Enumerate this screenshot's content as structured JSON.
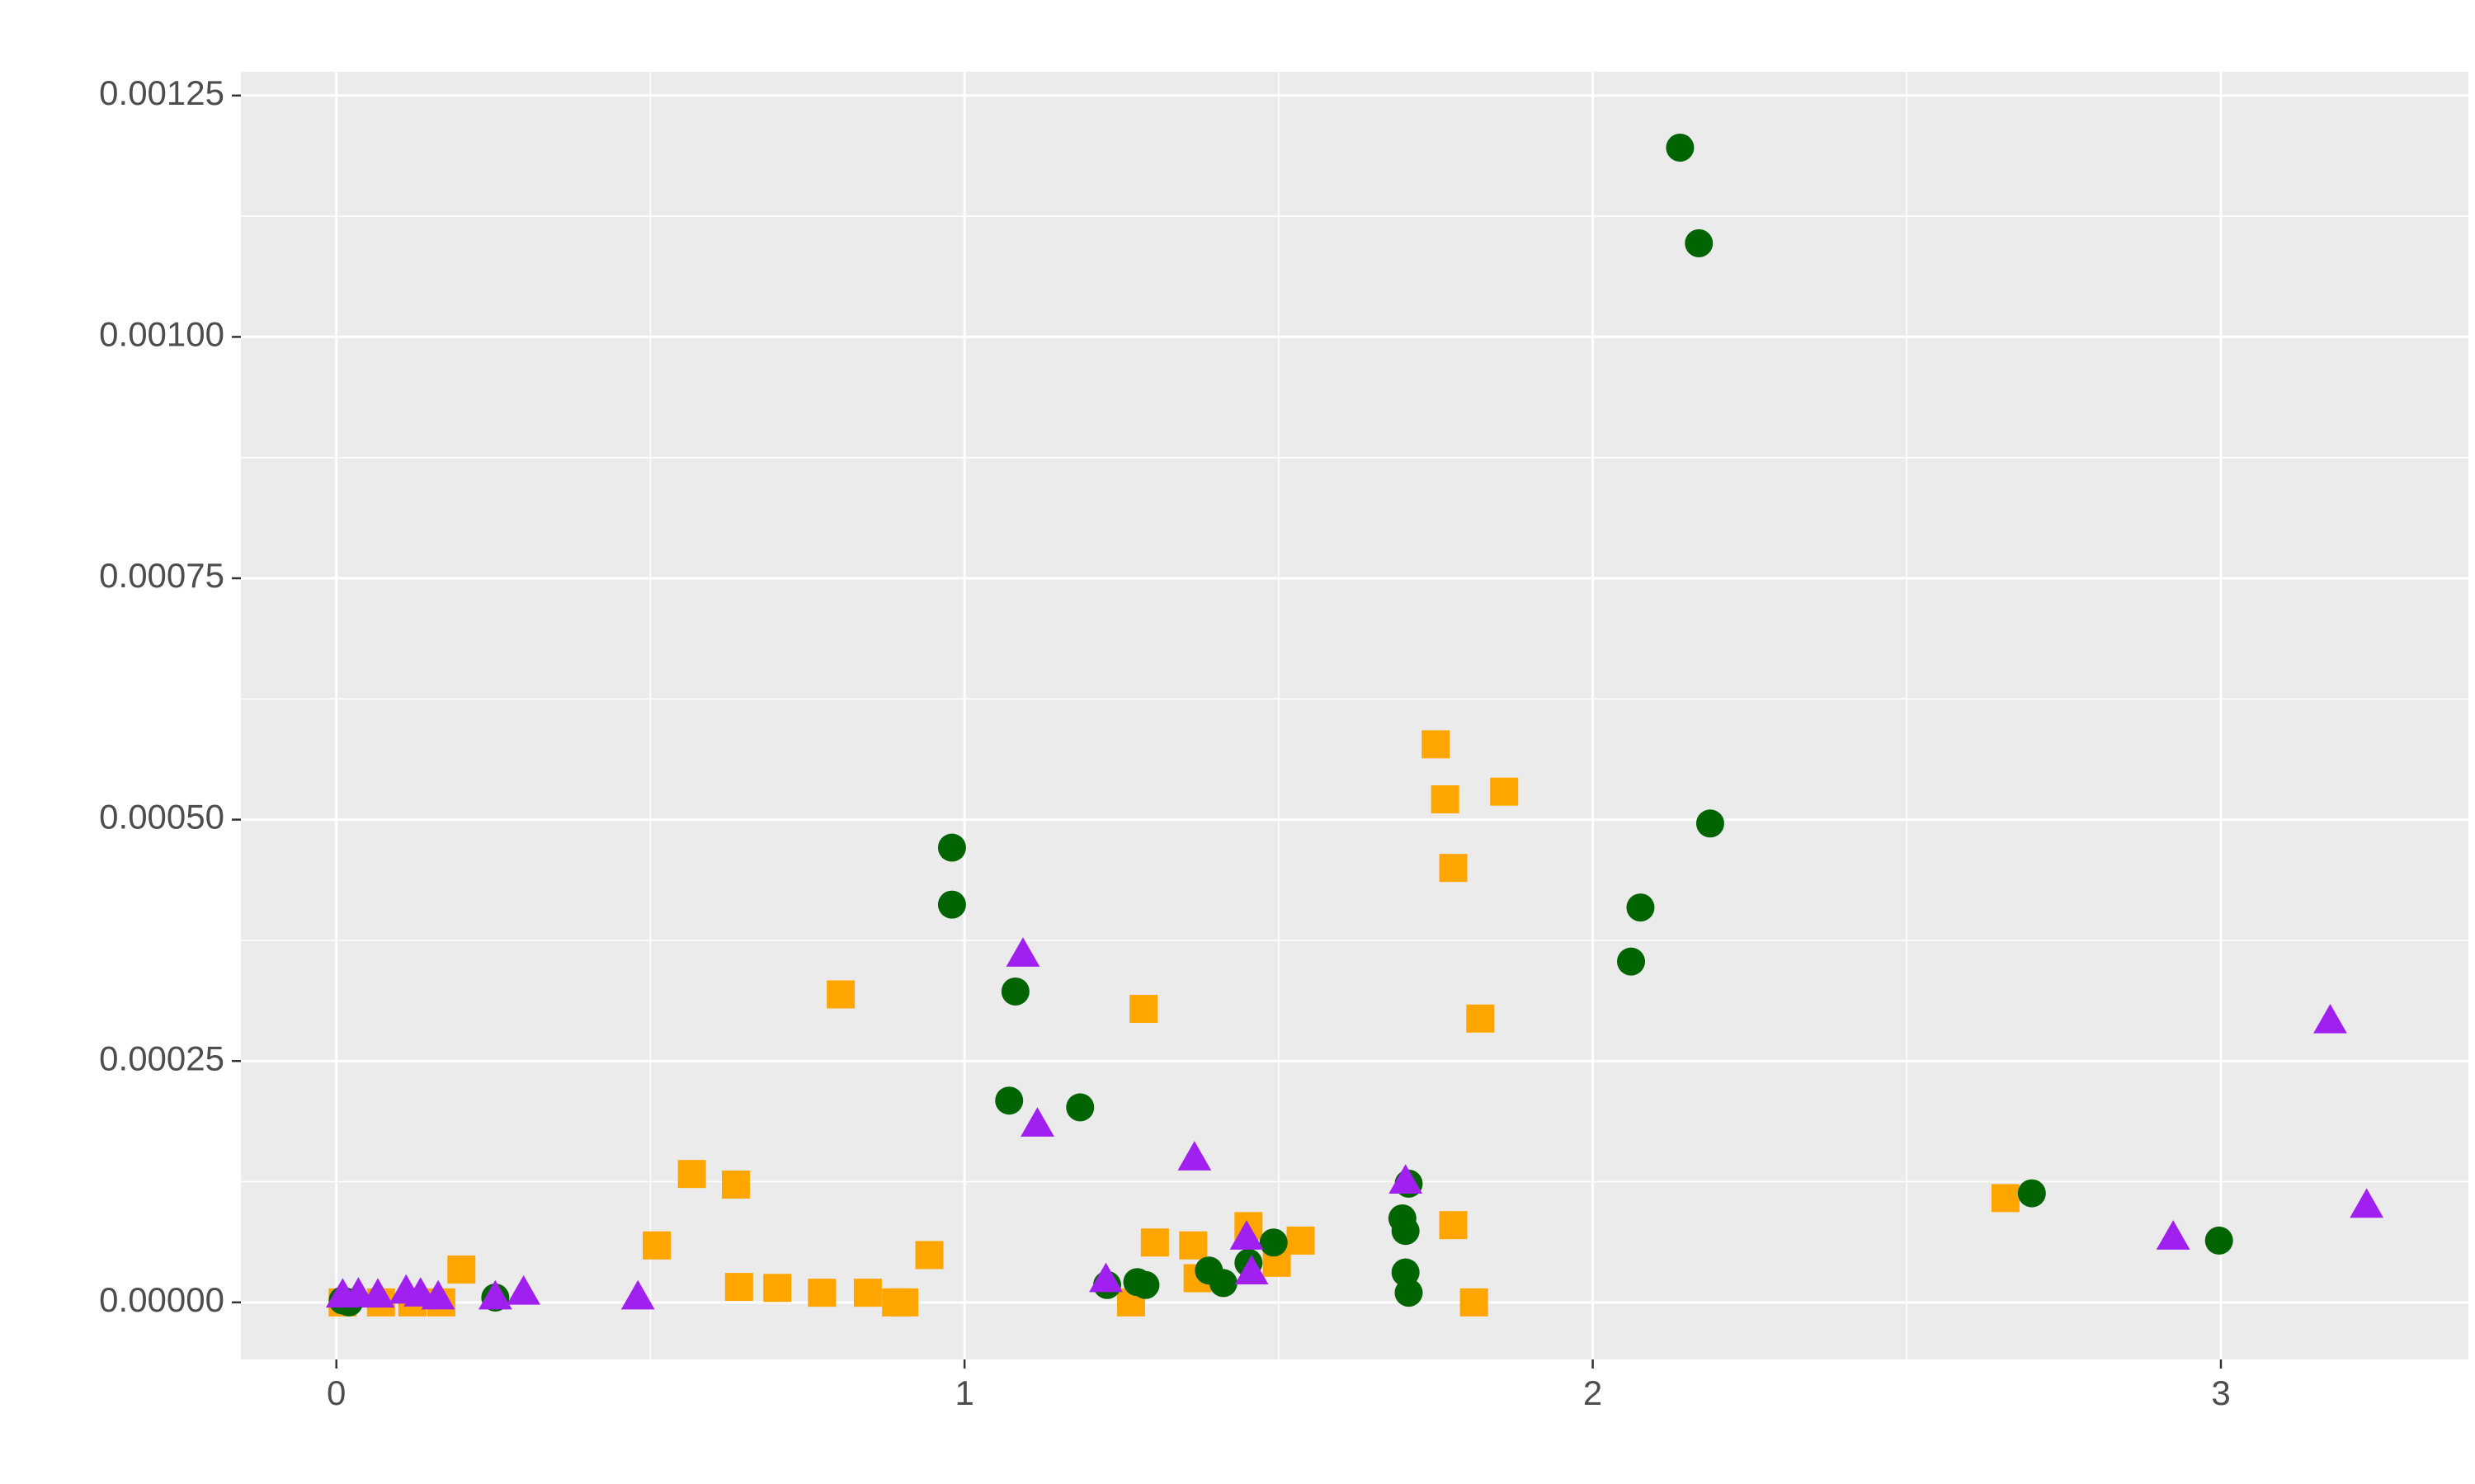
{
  "chart_data": {
    "type": "scatter",
    "xlim": [
      -0.152,
      3.394
    ],
    "xticks": [
      0,
      1,
      2,
      3
    ],
    "x_minor_ticks": [
      0.5,
      1.5,
      2.5
    ],
    "ylim": [
      -5.91e-05,
      0.0012746
    ],
    "yticks": [
      {
        "value": 0,
        "label": "0.00000"
      },
      {
        "value": 0.00025,
        "label": "0.00025"
      },
      {
        "value": 0.0005,
        "label": "0.00050"
      },
      {
        "value": 0.00075,
        "label": "0.00075"
      },
      {
        "value": 0.001,
        "label": "0.00100"
      },
      {
        "value": 0.00125,
        "label": "0.00125"
      }
    ],
    "y_minor_ticks": [
      0.000125,
      0.000375,
      0.000625,
      0.000875,
      0.001125
    ],
    "grid": true,
    "series": [
      {
        "color": "#ffa500",
        "shape": "square",
        "x": [
          1.75,
          1.765,
          1.859,
          1.778,
          1.821,
          0.803,
          1.285,
          0.566,
          0.636,
          0.51,
          0.944,
          0.641,
          0.702,
          0.773,
          0.846,
          0.891,
          0.904,
          0.199,
          2.657,
          1.778,
          1.811,
          1.452,
          1.535,
          1.497,
          1.303,
          1.364,
          1.371,
          1.265,
          0.01,
          0.071,
          0.121,
          0.167
        ],
        "values": [
          0.000578,
          0.000521,
          0.000529,
          0.00045,
          0.000294,
          0.000319,
          0.000304,
          0.000133,
          0.000122,
          5.9e-05,
          4.9e-05,
          1.6e-05,
          1.5e-05,
          1e-05,
          1e-05,
          0.0,
          0.0,
          3.4e-05,
          0.000108,
          8e-05,
          0.0,
          7.9e-05,
          6.4e-05,
          4.1e-05,
          6.2e-05,
          5.9e-05,
          2.5e-05,
          0.0,
          0.0,
          0.0,
          0.0,
          0.0
        ]
      },
      {
        "color": "#006400",
        "shape": "circle",
        "x": [
          2.139,
          2.169,
          2.187,
          2.076,
          2.061,
          0.98,
          0.98,
          1.081,
          1.071,
          1.184,
          2.699,
          2.997,
          1.707,
          1.697,
          1.702,
          1.702,
          1.707,
          1.492,
          1.389,
          1.412,
          1.452,
          1.275,
          1.288,
          1.227,
          0.253,
          0.02,
          0.01
        ],
        "values": [
          0.001196,
          0.001097,
          0.000496,
          0.000409,
          0.000353,
          0.000471,
          0.000412,
          0.000322,
          0.000209,
          0.000202,
          0.000113,
          6.4e-05,
          0.000123,
          8.7e-05,
          7.4e-05,
          3.1e-05,
          1e-05,
          6.2e-05,
          3.3e-05,
          2e-05,
          4.1e-05,
          2.1e-05,
          1.8e-05,
          1.8e-05,
          5e-06,
          0.0,
          2e-06
        ]
      },
      {
        "color": "#a020f0",
        "shape": "triangle",
        "x": [
          1.093,
          1.116,
          1.366,
          1.702,
          3.174,
          3.232,
          2.924,
          1.449,
          1.457,
          1.225,
          0.48,
          0.298,
          0.253,
          0.01,
          0.035,
          0.066,
          0.111,
          0.134,
          0.162
        ],
        "values": [
          0.00036,
          0.000184,
          0.000149,
          0.000125,
          0.000291,
          0.0001,
          6.7e-05,
          6.7e-05,
          3.1e-05,
          2.3e-05,
          5e-06,
          1e-05,
          5e-06,
          7e-06,
          8e-06,
          7e-06,
          1.1e-05,
          8e-06,
          5e-06
        ]
      }
    ]
  }
}
